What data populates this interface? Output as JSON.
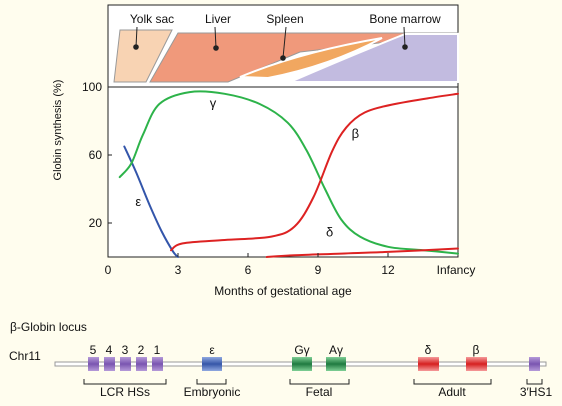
{
  "organs": {
    "yolk_sac": "Yolk sac",
    "liver": "Liver",
    "spleen": "Spleen",
    "bone_marrow": "Bone marrow"
  },
  "colors": {
    "yolk_sac": "#f8d3b3",
    "liver": "#f0997b",
    "spleen": "#f1a760",
    "bone_marrow": "#c2bbe0",
    "gamma": "#2db34a",
    "beta": "#dd2222",
    "epsilon": "#3355aa",
    "delta": "#dd2222",
    "lcr": "#8866bb",
    "epsilon_gene": "#4466bb",
    "fetal_gene": "#2a8a4a",
    "adult_gene": "#dd3333",
    "background": "#fffdee"
  },
  "chart_data": {
    "type": "line",
    "ylabel": "Globin synthesis (%)",
    "xlabel": "Months of gestational age",
    "x_ticks": [
      "0",
      "3",
      "6",
      "9",
      "12",
      "Infancy"
    ],
    "y_ticks": [
      "100",
      "60",
      "20"
    ],
    "xlim": [
      0,
      15
    ],
    "ylim": [
      0,
      100
    ],
    "series": [
      {
        "name": "ε",
        "points": [
          [
            0.7,
            65
          ],
          [
            1.2,
            50
          ],
          [
            1.8,
            30
          ],
          [
            2.3,
            15
          ],
          [
            2.8,
            3
          ],
          [
            3.0,
            0
          ]
        ]
      },
      {
        "name": "γ",
        "points": [
          [
            0.5,
            47
          ],
          [
            1.0,
            55
          ],
          [
            1.5,
            72
          ],
          [
            2.2,
            90
          ],
          [
            3.5,
            97
          ],
          [
            5.0,
            96
          ],
          [
            6.5,
            90
          ],
          [
            7.7,
            79
          ],
          [
            8.5,
            63
          ],
          [
            9.3,
            40
          ],
          [
            10.0,
            22
          ],
          [
            10.8,
            12
          ],
          [
            12.0,
            6
          ],
          [
            13.5,
            4
          ],
          [
            15.0,
            2
          ]
        ]
      },
      {
        "name": "β",
        "points": [
          [
            2.7,
            4
          ],
          [
            3.2,
            8
          ],
          [
            5.0,
            10
          ],
          [
            7.0,
            12
          ],
          [
            8.0,
            18
          ],
          [
            8.8,
            35
          ],
          [
            9.6,
            62
          ],
          [
            10.2,
            76
          ],
          [
            11.0,
            85
          ],
          [
            12.3,
            90
          ],
          [
            14.0,
            94
          ],
          [
            15.0,
            96
          ]
        ]
      },
      {
        "name": "δ",
        "points": [
          [
            6.8,
            0
          ],
          [
            8.0,
            1
          ],
          [
            10.0,
            2
          ],
          [
            12.0,
            3
          ],
          [
            15.0,
            5
          ]
        ]
      }
    ]
  },
  "locus": {
    "title": "β-Globin locus",
    "chromosome": "Chr11",
    "lcr_sites": [
      "5",
      "4",
      "3",
      "2",
      "1"
    ],
    "genes": {
      "epsilon": "ε",
      "g_gamma": "Gγ",
      "a_gamma": "Aγ",
      "delta": "δ",
      "beta": "β"
    },
    "groups": {
      "lcr": "LCR HSs",
      "embryonic": "Embryonic",
      "fetal": "Fetal",
      "adult": "Adult",
      "hs1": "3′HS1"
    }
  }
}
